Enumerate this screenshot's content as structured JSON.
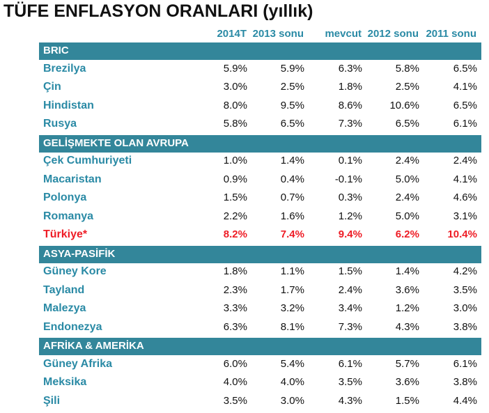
{
  "title": "TÜFE ENFLASYON ORANLARI (yıllık)",
  "columns": [
    "2014T",
    "2013 sonu",
    "mevcut",
    "2012 sonu",
    "2011 sonu"
  ],
  "colors": {
    "accent": "#2a8aa5",
    "section_bg": "#33869a",
    "highlight": "#ee1c25"
  },
  "sections": [
    {
      "name": "BRIC",
      "rows": [
        {
          "name": "Brezilya",
          "values": [
            "5.9%",
            "5.9%",
            "6.3%",
            "5.8%",
            "6.5%"
          ]
        },
        {
          "name": "Çin",
          "values": [
            "3.0%",
            "2.5%",
            "1.8%",
            "2.5%",
            "4.1%"
          ]
        },
        {
          "name": "Hindistan",
          "values": [
            "8.0%",
            "9.5%",
            "8.6%",
            "10.6%",
            "6.5%"
          ]
        },
        {
          "name": "Rusya",
          "values": [
            "5.8%",
            "6.5%",
            "7.3%",
            "6.5%",
            "6.1%"
          ]
        }
      ]
    },
    {
      "name": "GELİŞMEKTE OLAN AVRUPA",
      "rows": [
        {
          "name": "Çek Cumhuriyeti",
          "values": [
            "1.0%",
            "1.4%",
            "0.1%",
            "2.4%",
            "2.4%"
          ]
        },
        {
          "name": "Macaristan",
          "values": [
            "0.9%",
            "0.4%",
            "-0.1%",
            "5.0%",
            "4.1%"
          ]
        },
        {
          "name": "Polonya",
          "values": [
            "1.5%",
            "0.7%",
            "0.3%",
            "2.4%",
            "4.6%"
          ]
        },
        {
          "name": "Romanya",
          "values": [
            "2.2%",
            "1.6%",
            "1.2%",
            "5.0%",
            "3.1%"
          ]
        },
        {
          "name": "Türkiye*",
          "values": [
            "8.2%",
            "7.4%",
            "9.4%",
            "6.2%",
            "10.4%"
          ],
          "highlight": true
        }
      ]
    },
    {
      "name": "ASYA-PASİFİK",
      "rows": [
        {
          "name": "Güney Kore",
          "values": [
            "1.8%",
            "1.1%",
            "1.5%",
            "1.4%",
            "4.2%"
          ]
        },
        {
          "name": "Tayland",
          "values": [
            "2.3%",
            "1.7%",
            "2.4%",
            "3.6%",
            "3.5%"
          ]
        },
        {
          "name": "Malezya",
          "values": [
            "3.3%",
            "3.2%",
            "3.4%",
            "1.2%",
            "3.0%"
          ]
        },
        {
          "name": "Endonezya",
          "values": [
            "6.3%",
            "8.1%",
            "7.3%",
            "4.3%",
            "3.8%"
          ]
        }
      ]
    },
    {
      "name": "AFRİKA & AMERİKA",
      "rows": [
        {
          "name": "Güney Afrika",
          "values": [
            "6.0%",
            "5.4%",
            "6.1%",
            "5.7%",
            "6.1%"
          ]
        },
        {
          "name": "Meksika",
          "values": [
            "4.0%",
            "4.0%",
            "3.5%",
            "3.6%",
            "3.8%"
          ]
        },
        {
          "name": "Şili",
          "values": [
            "3.5%",
            "3.0%",
            "4.3%",
            "1.5%",
            "4.4%"
          ]
        }
      ]
    }
  ]
}
